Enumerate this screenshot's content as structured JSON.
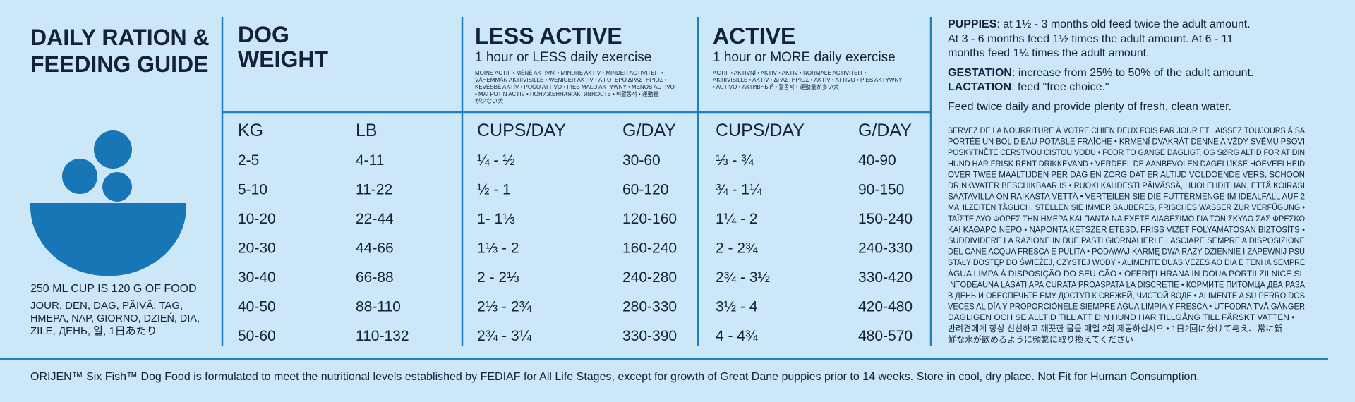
{
  "left": {
    "title_lines": [
      "DAILY RATION &",
      "FEEDING GUIDE"
    ],
    "cup_note": "250 ML CUP IS 120 G OF FOOD",
    "per_day_lines": [
      "JOUR, DEN, DAG, PÄIVÄ, TAG,",
      "ΗΜΕΡΑ, NAP, GIORNO, DZIEŃ, DIA,",
      "ZILE, ДЕНЬ, 일, 1日あたり"
    ]
  },
  "table": {
    "weight_header": [
      "DOG",
      "WEIGHT"
    ],
    "less_active": {
      "title": "LESS ACTIVE",
      "subtitle": "1 hour or LESS daily exercise",
      "translations": [
        "MOINS ACTIF • MÉNĚ AKTIVNÍ • MINDRE AKTIV • MINDER ACTIVITEIT •",
        "VÄHEMMÄN AKTIIVISILLE • WENIGER AKTIV • ΛΙΓΟΤΕΡΟ ΔΡΑΣΤΗΡΙΟΣ •",
        "KEVÉSBÉ AKTÍV • POCO ATTIVO • PIES MAŁO AKTYWNY • MENOS ACTIVO",
        "• MAI PUTIN ACTIV • ПОНИЖЕННАЯ АКТИВНОСТЬ • 비활동적 • 運動量",
        "が少ない犬"
      ]
    },
    "active": {
      "title": "ACTIVE",
      "subtitle": "1 hour or MORE daily exercise",
      "translations": [
        "ACTIF • AKTIVNÍ • AKTIV • AKTIV • NORMALE ACTIVITEIT •",
        "AKTIIVISILLE • AKTIV • ΔΡΑΣΤΗΡΙΟΣ • AKTÍV • ATTIVO • PIES AKTYWNY",
        "• ACTIVO • АКТИВНЫЙ • 활동적 • 運動量が多い犬"
      ]
    },
    "columns": [
      "KG",
      "LB",
      "CUPS/DAY",
      "G/DAY",
      "CUPS/DAY",
      "G/DAY"
    ],
    "rows": [
      [
        "2-5",
        "4-11",
        "¼ - ½",
        "30-60",
        "⅓ - ¾",
        "40-90"
      ],
      [
        "5-10",
        "11-22",
        "½ - 1",
        "60-120",
        "¾ - 1¼",
        "90-150"
      ],
      [
        "10-20",
        "22-44",
        "1- 1⅓",
        "120-160",
        "1¼ - 2",
        "150-240"
      ],
      [
        "20-30",
        "44-66",
        "1⅓ - 2",
        "160-240",
        "2 - 2¾",
        "240-330"
      ],
      [
        "30-40",
        "66-88",
        "2 - 2⅓",
        "240-280",
        "2¾ - 3½",
        "330-420"
      ],
      [
        "40-50",
        "88-110",
        "2⅓ - 2¾",
        "280-330",
        "3½ - 4",
        "420-480"
      ],
      [
        "50-60",
        "110-132",
        "2¾ - 3¼",
        "330-390",
        "4 - 4¾",
        "480-570"
      ]
    ]
  },
  "right": {
    "puppies_label": "PUPPIES",
    "puppies_lines": [
      ": at 1½ - 3 months old feed twice the adult amount.",
      "At  3 - 6 months feed 1½ times the adult amount. At 6 - 11",
      "months feed 1¼ times the adult amount."
    ],
    "gestation_label": "GESTATION",
    "gestation_text": ": increase from 25% to 50% of the adult amount.",
    "lactation_label": "LACTATION",
    "lactation_text": ": feed \"free choice.\"",
    "feed_note": "Feed twice daily and provide plenty of fresh, clean water.",
    "translations": [
      "SERVEZ DE LA NOURRITURE À VOTRE CHIEN DEUX FOIS PAR JOUR ET LAISSEZ TOUJOURS À SA",
      "PORTÉE UN BOL D'EAU POTABLE FRAÎCHE • KRMENÍ DVAKRÁT DENNE A VŽDY SVÉMU PSOVI",
      "POSKYTNĚTE CERSTVOU CISTOU VODU • FODR TO GANGE DAGLIGT, OG SØRG ALTID FOR AT DIN",
      "HUND HAR FRISK RENT DRIKKEVAND • VERDEEL DE AANBEVOLEN DAGELIJKSE HOEVEELHEID",
      "OVER TWEE MAALTIJDEN PER DAG EN ZORG DAT ER ALTIJD VOLDOENDE VERS, SCHOON",
      "DRINKWATER BESCHIKBAAR IS • RUOKI KAHDESTI PÄIVÄSSÄ, HUOLEHDITHAN, ETTÄ KOIRASI",
      "SAATAVILLA ON RAIKASTA VETTÄ • VERTEILEN SIE DIE FUTTERMENGE IM IDEALFALL AUF 2",
      "MAHLZEITEN TÄGLICH. STELLEN SIE IMMER SAUBERES, FRISCHES WASSER ZUR VERFÜGUNG •",
      "ΤΑΪΣΤΕ ΔΥΟ ΦΟΡΕΣ ΤΗΝ ΗΜΕΡΑ ΚΑΙ ΠΑΝΤΑ ΝΑ ΕΧΕΤΕ ΔΙΑΘΕΣΙΜΟ ΓΙΑ ΤΟΝ ΣΚΥΛΟ ΣΑΣ ΦΡΕΣΚΟ",
      "ΚΑΙ ΚΑΘΑΡΟ ΝΕΡΟ • NAPONTA KÉTSZER ETESD, FRISS VIZET FOLYAMATOSAN BIZTOSÍTS •",
      "SUDDIVIDERE LA RAZIONE IN DUE PASTI GIORNALIERI E LASCIARE SEMPRE A DISPOSIZIONE",
      "DEL CANE ACQUA FRESCA E PULITA • PODAWAJ KARMĘ DWA RAZY DZIENNIE I ZAPEWNIJ PSU",
      "STAŁY DOSTĘP DO ŚWIEŻEJ, CZYSTEJ WODY • ALIMENTE DUAS VEZES AO DIA E TENHA SEMPRE",
      "ÁGUA LIMPA À DISPOSIÇÃO DO SEU CÃO • OFERIȚI HRANA IN DOUA PORTII ZILNICE SI",
      "INTODEAUNA LASATI APA CURATA PROASPATA LA DISCRETIE • КОРМИТЕ ПИТОМЦА ДВА РАЗА",
      "В ДЕНЬ И ОБЕСПЕЧЬТЕ ЕМУ ДОСТУП К СВЕЖЕЙ, ЧИСТОЙ ВОДЕ • ALIMENTE A SU PERRO DOS",
      "VECES AL DÍA Y PROPORCIÓNELE SIEMPRE AGUA LIMPIA Y FRESCA • UTFODRA TVÅ GÅNGER",
      "DAGLIGEN OCH SE ALLTID TILL ATT DIN HUND HAR TILLGÅNG TILL FÄRSKT VATTEN •",
      "반려견에게 항상 신선하고 깨끗한 물을 매일 2회 제공하십시오 • 1日2回に分けて与え、常に新",
      "鮮な水が飲めるように頻繁に取り換えてください"
    ]
  },
  "footer": "ORIJEN™ Six Fish™ Dog Food is formulated to meet the nutritional levels established by FEDIAF for All Life Stages, except for growth of Great Dane puppies prior to 14 weeks. Store in cool, dry place. Not Fit for Human Consumption."
}
